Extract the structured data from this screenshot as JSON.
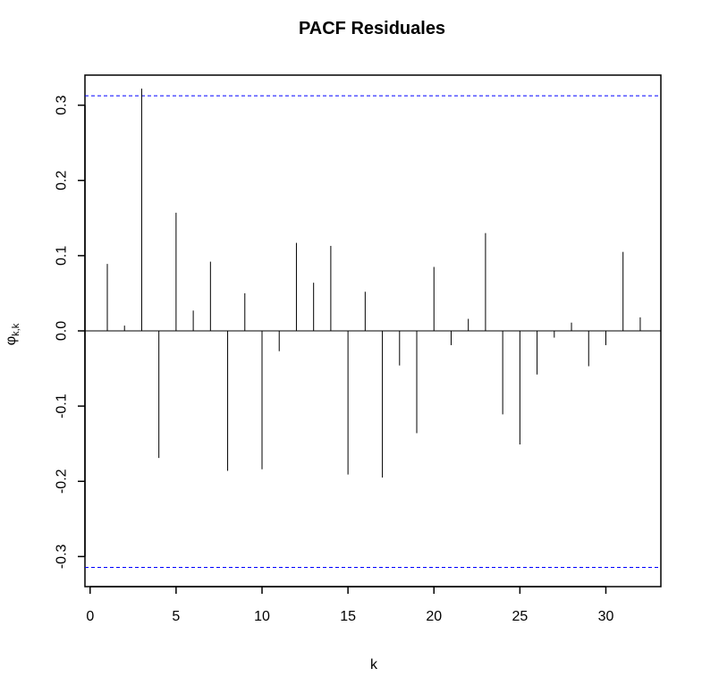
{
  "chart_data": {
    "type": "bar",
    "title": "PACF Residuales",
    "xlabel": "k",
    "ylabel": {
      "base": "φ",
      "subscript": "k,k"
    },
    "xlim": [
      -0.3,
      33.2
    ],
    "ylim": [
      -0.34,
      0.34
    ],
    "x_ticks": [
      0,
      5,
      10,
      15,
      20,
      25,
      30
    ],
    "y_ticks": [
      -0.3,
      -0.2,
      -0.1,
      0.0,
      0.1,
      0.2,
      0.3
    ],
    "y_tick_labels": [
      "-0.3",
      "-0.2",
      "-0.1",
      "0.0",
      "0.1",
      "0.2",
      "0.3"
    ],
    "confidence_bounds": [
      0.3125,
      -0.3145
    ],
    "x": [
      1,
      2,
      3,
      4,
      5,
      6,
      7,
      8,
      9,
      10,
      11,
      12,
      13,
      14,
      15,
      16,
      17,
      18,
      19,
      20,
      21,
      22,
      23,
      24,
      25,
      26,
      27,
      28,
      29,
      30,
      31,
      32
    ],
    "values": [
      0.089,
      0.007,
      0.322,
      -0.169,
      0.157,
      0.027,
      0.092,
      -0.186,
      0.05,
      -0.184,
      -0.027,
      0.117,
      0.064,
      0.113,
      -0.191,
      0.052,
      -0.195,
      -0.046,
      -0.136,
      0.085,
      -0.019,
      0.016,
      0.13,
      -0.111,
      -0.151,
      -0.058,
      -0.009,
      0.011,
      -0.047,
      -0.019,
      0.105,
      0.018
    ],
    "grid": false,
    "legend": "none",
    "colors": {
      "bars": "#000000",
      "bounds": "#0000ff",
      "zero_line": "#000000"
    }
  }
}
